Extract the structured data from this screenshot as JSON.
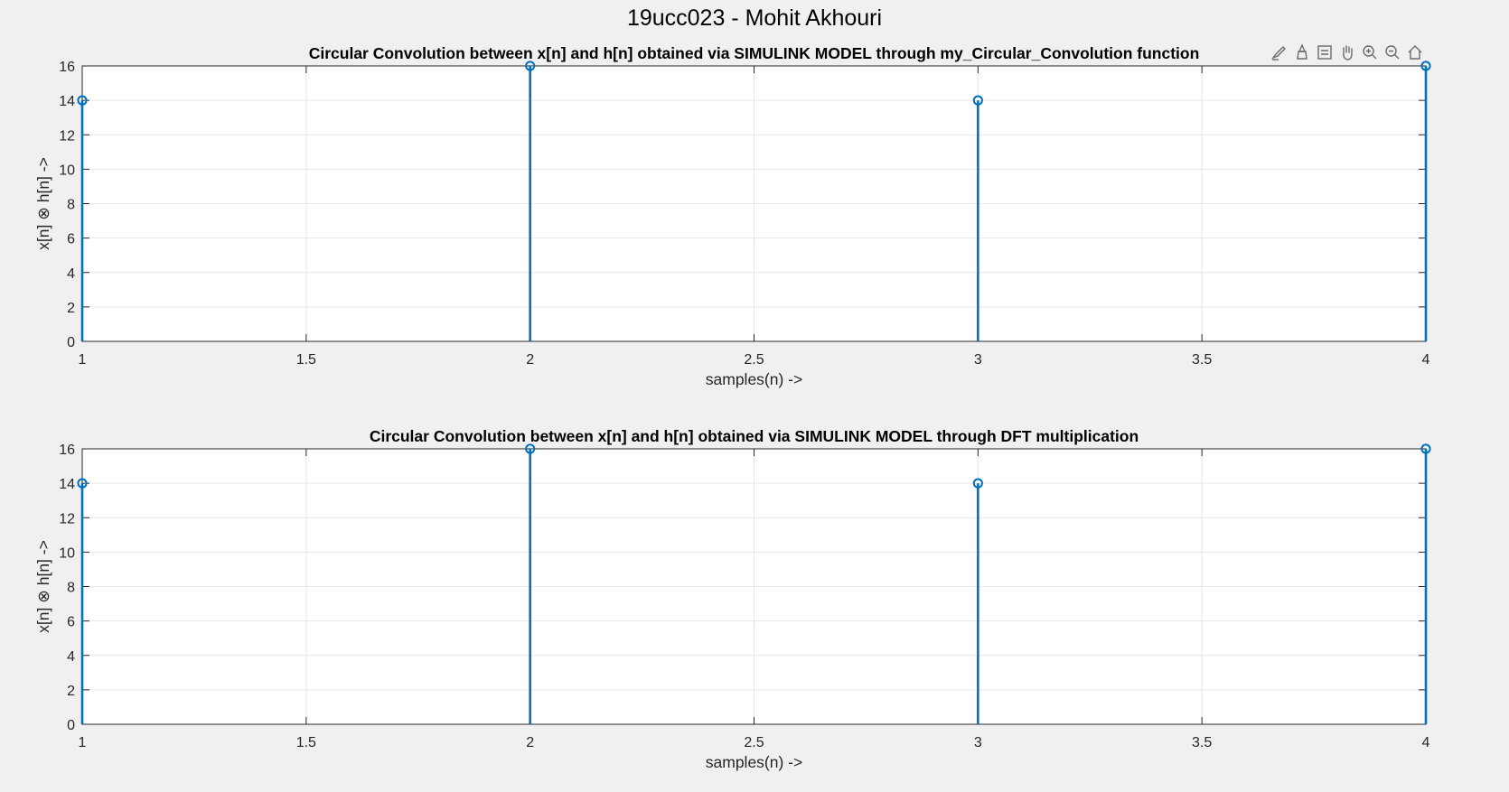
{
  "figure": {
    "title": "19ucc023 - Mohit Akhouri"
  },
  "toolbar": {
    "icons": [
      "brush-icon",
      "data-tip-icon",
      "legend-icon",
      "pan-hand-icon",
      "zoom-in-icon",
      "zoom-out-icon",
      "home-icon"
    ]
  },
  "colors": {
    "stem": "#0072BD",
    "grid": "#e6e6e6",
    "axes_bg": "#ffffff",
    "figure_bg": "#f0f0f0",
    "toolbar_icon": "#6b6b6b"
  },
  "chart_data": [
    {
      "type": "stem",
      "title": "Circular Convolution between x[n] and h[n] obtained via SIMULINK MODEL through my_Circular_Convolution function",
      "xlabel": "samples(n) ->",
      "ylabel": "x[n] ⊗ h[n] ->",
      "x": [
        1,
        2,
        3,
        4
      ],
      "y": [
        14,
        16,
        14,
        16
      ],
      "xlim": [
        1,
        4
      ],
      "ylim": [
        0,
        16
      ],
      "xticks": [
        1,
        1.5,
        2,
        2.5,
        3,
        3.5,
        4
      ],
      "xtick_labels": [
        "1",
        "1.5",
        "2",
        "2.5",
        "3",
        "3.5",
        "4"
      ],
      "yticks": [
        0,
        2,
        4,
        6,
        8,
        10,
        12,
        14,
        16
      ],
      "ytick_labels": [
        "0",
        "2",
        "4",
        "6",
        "8",
        "10",
        "12",
        "14",
        "16"
      ],
      "grid": true
    },
    {
      "type": "stem",
      "title": "Circular Convolution between x[n] and h[n] obtained via SIMULINK MODEL through DFT multiplication",
      "xlabel": "samples(n) ->",
      "ylabel": "x[n] ⊗ h[n] ->",
      "x": [
        1,
        2,
        3,
        4
      ],
      "y": [
        14,
        16,
        14,
        16
      ],
      "xlim": [
        1,
        4
      ],
      "ylim": [
        0,
        16
      ],
      "xticks": [
        1,
        1.5,
        2,
        2.5,
        3,
        3.5,
        4
      ],
      "xtick_labels": [
        "1",
        "1.5",
        "2",
        "2.5",
        "3",
        "3.5",
        "4"
      ],
      "yticks": [
        0,
        2,
        4,
        6,
        8,
        10,
        12,
        14,
        16
      ],
      "ytick_labels": [
        "0",
        "2",
        "4",
        "6",
        "8",
        "10",
        "12",
        "14",
        "16"
      ],
      "grid": true
    }
  ]
}
